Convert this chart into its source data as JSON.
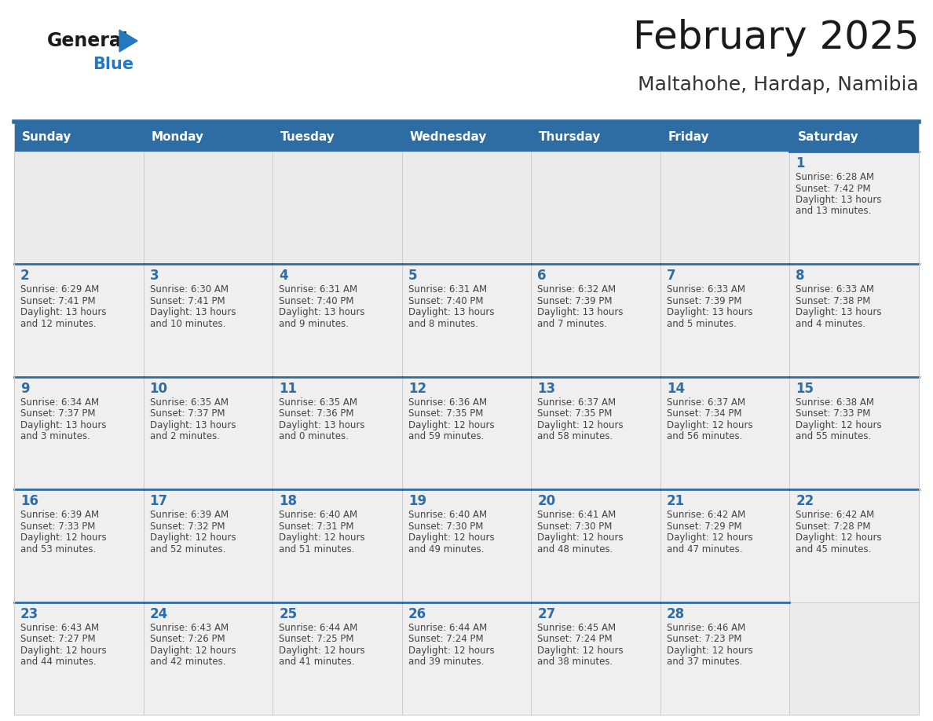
{
  "title": "February 2025",
  "subtitle": "Maltahohe, Hardap, Namibia",
  "days_of_week": [
    "Sunday",
    "Monday",
    "Tuesday",
    "Wednesday",
    "Thursday",
    "Friday",
    "Saturday"
  ],
  "header_bg": "#2E6DA4",
  "header_text": "#FFFFFF",
  "cell_bg_filled": "#EFEFEF",
  "cell_bg_empty": "#EBEBEB",
  "cell_border_color": "#2E6DA4",
  "cell_line_color": "#CCCCCC",
  "title_color": "#1a1a1a",
  "subtitle_color": "#333333",
  "day_number_color": "#2E6DA4",
  "cell_text_color": "#444444",
  "logo_general_color": "#1a1a1a",
  "logo_blue_color": "#2479BE",
  "calendar_data": [
    [
      null,
      null,
      null,
      null,
      null,
      null,
      {
        "day": 1,
        "sunrise": "6:28 AM",
        "sunset": "7:42 PM",
        "daylight": "13 hours and 13 minutes."
      }
    ],
    [
      {
        "day": 2,
        "sunrise": "6:29 AM",
        "sunset": "7:41 PM",
        "daylight": "13 hours and 12 minutes."
      },
      {
        "day": 3,
        "sunrise": "6:30 AM",
        "sunset": "7:41 PM",
        "daylight": "13 hours and 10 minutes."
      },
      {
        "day": 4,
        "sunrise": "6:31 AM",
        "sunset": "7:40 PM",
        "daylight": "13 hours and 9 minutes."
      },
      {
        "day": 5,
        "sunrise": "6:31 AM",
        "sunset": "7:40 PM",
        "daylight": "13 hours and 8 minutes."
      },
      {
        "day": 6,
        "sunrise": "6:32 AM",
        "sunset": "7:39 PM",
        "daylight": "13 hours and 7 minutes."
      },
      {
        "day": 7,
        "sunrise": "6:33 AM",
        "sunset": "7:39 PM",
        "daylight": "13 hours and 5 minutes."
      },
      {
        "day": 8,
        "sunrise": "6:33 AM",
        "sunset": "7:38 PM",
        "daylight": "13 hours and 4 minutes."
      }
    ],
    [
      {
        "day": 9,
        "sunrise": "6:34 AM",
        "sunset": "7:37 PM",
        "daylight": "13 hours and 3 minutes."
      },
      {
        "day": 10,
        "sunrise": "6:35 AM",
        "sunset": "7:37 PM",
        "daylight": "13 hours and 2 minutes."
      },
      {
        "day": 11,
        "sunrise": "6:35 AM",
        "sunset": "7:36 PM",
        "daylight": "13 hours and 0 minutes."
      },
      {
        "day": 12,
        "sunrise": "6:36 AM",
        "sunset": "7:35 PM",
        "daylight": "12 hours and 59 minutes."
      },
      {
        "day": 13,
        "sunrise": "6:37 AM",
        "sunset": "7:35 PM",
        "daylight": "12 hours and 58 minutes."
      },
      {
        "day": 14,
        "sunrise": "6:37 AM",
        "sunset": "7:34 PM",
        "daylight": "12 hours and 56 minutes."
      },
      {
        "day": 15,
        "sunrise": "6:38 AM",
        "sunset": "7:33 PM",
        "daylight": "12 hours and 55 minutes."
      }
    ],
    [
      {
        "day": 16,
        "sunrise": "6:39 AM",
        "sunset": "7:33 PM",
        "daylight": "12 hours and 53 minutes."
      },
      {
        "day": 17,
        "sunrise": "6:39 AM",
        "sunset": "7:32 PM",
        "daylight": "12 hours and 52 minutes."
      },
      {
        "day": 18,
        "sunrise": "6:40 AM",
        "sunset": "7:31 PM",
        "daylight": "12 hours and 51 minutes."
      },
      {
        "day": 19,
        "sunrise": "6:40 AM",
        "sunset": "7:30 PM",
        "daylight": "12 hours and 49 minutes."
      },
      {
        "day": 20,
        "sunrise": "6:41 AM",
        "sunset": "7:30 PM",
        "daylight": "12 hours and 48 minutes."
      },
      {
        "day": 21,
        "sunrise": "6:42 AM",
        "sunset": "7:29 PM",
        "daylight": "12 hours and 47 minutes."
      },
      {
        "day": 22,
        "sunrise": "6:42 AM",
        "sunset": "7:28 PM",
        "daylight": "12 hours and 45 minutes."
      }
    ],
    [
      {
        "day": 23,
        "sunrise": "6:43 AM",
        "sunset": "7:27 PM",
        "daylight": "12 hours and 44 minutes."
      },
      {
        "day": 24,
        "sunrise": "6:43 AM",
        "sunset": "7:26 PM",
        "daylight": "12 hours and 42 minutes."
      },
      {
        "day": 25,
        "sunrise": "6:44 AM",
        "sunset": "7:25 PM",
        "daylight": "12 hours and 41 minutes."
      },
      {
        "day": 26,
        "sunrise": "6:44 AM",
        "sunset": "7:24 PM",
        "daylight": "12 hours and 39 minutes."
      },
      {
        "day": 27,
        "sunrise": "6:45 AM",
        "sunset": "7:24 PM",
        "daylight": "12 hours and 38 minutes."
      },
      {
        "day": 28,
        "sunrise": "6:46 AM",
        "sunset": "7:23 PM",
        "daylight": "12 hours and 37 minutes."
      },
      null
    ]
  ]
}
